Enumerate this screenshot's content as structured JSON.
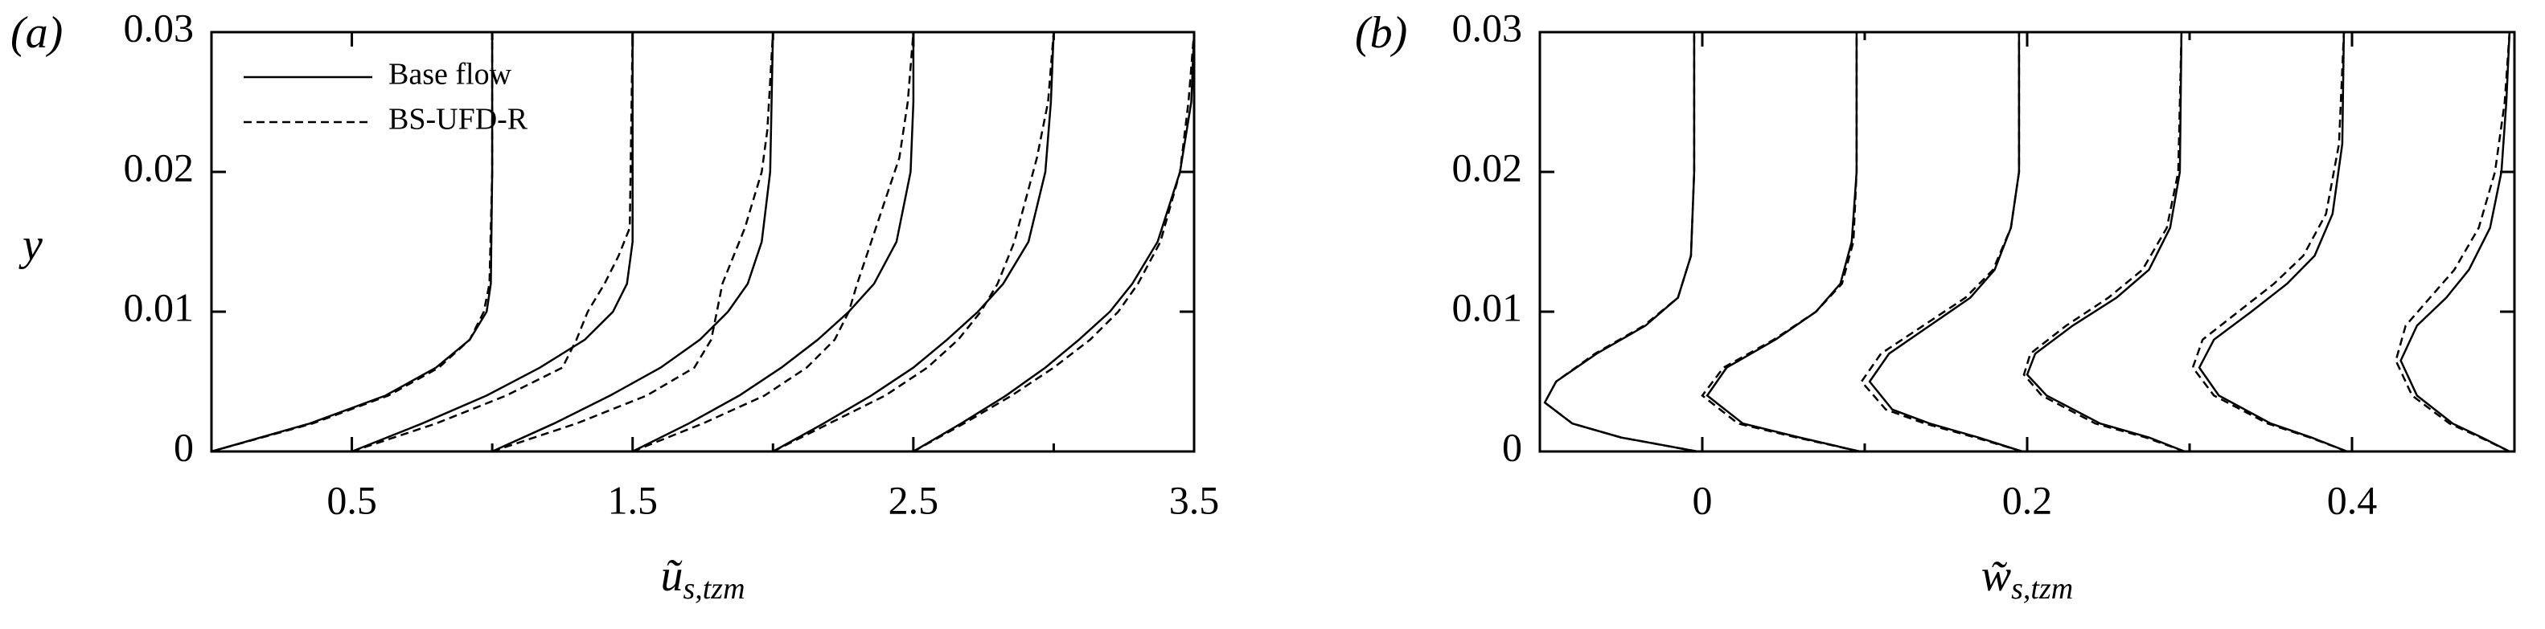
{
  "chart_data": [
    {
      "type": "line",
      "panel_label": "(a)",
      "xlabel": {
        "symbol": "ũ",
        "subscript": "s,tzm"
      },
      "ylabel": "y",
      "xlim": [
        0,
        3.5
      ],
      "ylim": [
        0,
        0.03
      ],
      "xticks": [
        0.5,
        1.5,
        2.5,
        3.5
      ],
      "minor_xticks": [
        1,
        2,
        3
      ],
      "yticks": [
        0,
        0.01,
        0.02,
        0.03
      ],
      "legend": "upper left",
      "series": [
        {
          "name": "Base flow",
          "color": "#000000",
          "style": "solid",
          "lines": [
            {
              "x": [
                0,
                0.35,
                0.62,
                0.8,
                0.92,
                0.98,
                0.995,
                1.0,
                1.0
              ],
              "values": [
                0,
                0.002,
                0.004,
                0.006,
                0.008,
                0.01,
                0.012,
                0.02,
                0.03
              ]
            },
            {
              "x": [
                0.5,
                0.75,
                0.98,
                1.17,
                1.33,
                1.43,
                1.48,
                1.5,
                1.5
              ],
              "values": [
                0,
                0.002,
                0.004,
                0.006,
                0.008,
                0.01,
                0.012,
                0.015,
                0.03
              ]
            },
            {
              "x": [
                1.0,
                1.22,
                1.42,
                1.6,
                1.74,
                1.84,
                1.91,
                1.96,
                1.99,
                2.0
              ],
              "values": [
                0,
                0.002,
                0.004,
                0.006,
                0.008,
                0.01,
                0.012,
                0.015,
                0.02,
                0.03
              ]
            },
            {
              "x": [
                1.5,
                1.7,
                1.88,
                2.03,
                2.16,
                2.27,
                2.36,
                2.44,
                2.49,
                2.5,
                2.5
              ],
              "values": [
                0,
                0.002,
                0.004,
                0.006,
                0.008,
                0.01,
                0.012,
                0.015,
                0.02,
                0.025,
                0.03
              ]
            },
            {
              "x": [
                2.0,
                2.18,
                2.35,
                2.5,
                2.62,
                2.73,
                2.82,
                2.91,
                2.97,
                2.99,
                3.0
              ],
              "values": [
                0,
                0.002,
                0.004,
                0.006,
                0.008,
                0.01,
                0.012,
                0.015,
                0.02,
                0.025,
                0.03
              ]
            },
            {
              "x": [
                2.5,
                2.67,
                2.83,
                2.97,
                3.09,
                3.2,
                3.28,
                3.37,
                3.45,
                3.49,
                3.5
              ],
              "values": [
                0,
                0.002,
                0.004,
                0.006,
                0.008,
                0.01,
                0.012,
                0.015,
                0.02,
                0.025,
                0.03
              ]
            }
          ]
        },
        {
          "name": "BS-UFD-R",
          "color": "#000000",
          "style": "dashed",
          "lines": [
            {
              "x": [
                0,
                0.36,
                0.63,
                0.81,
                0.92,
                0.97,
                0.99,
                1.0,
                1.0
              ],
              "values": [
                0,
                0.002,
                0.004,
                0.006,
                0.008,
                0.01,
                0.012,
                0.02,
                0.03
              ]
            },
            {
              "x": [
                0.5,
                0.8,
                1.05,
                1.25,
                1.3,
                1.34,
                1.4,
                1.45,
                1.49,
                1.5
              ],
              "values": [
                0,
                0.002,
                0.004,
                0.006,
                0.008,
                0.01,
                0.012,
                0.014,
                0.016,
                0.03
              ]
            },
            {
              "x": [
                1.0,
                1.3,
                1.55,
                1.72,
                1.78,
                1.8,
                1.82,
                1.86,
                1.9,
                1.93,
                1.96,
                1.98,
                2.0
              ],
              "values": [
                0,
                0.002,
                0.004,
                0.006,
                0.008,
                0.01,
                0.012,
                0.014,
                0.016,
                0.018,
                0.02,
                0.023,
                0.03
              ]
            },
            {
              "x": [
                1.5,
                1.75,
                1.97,
                2.12,
                2.22,
                2.27,
                2.3,
                2.35,
                2.4,
                2.45,
                2.48,
                2.5
              ],
              "values": [
                0,
                0.002,
                0.004,
                0.006,
                0.008,
                0.01,
                0.012,
                0.015,
                0.018,
                0.021,
                0.025,
                0.03
              ]
            },
            {
              "x": [
                2.0,
                2.2,
                2.4,
                2.55,
                2.66,
                2.74,
                2.8,
                2.86,
                2.9,
                2.94,
                2.98,
                3.0
              ],
              "values": [
                0,
                0.002,
                0.004,
                0.006,
                0.008,
                0.01,
                0.012,
                0.015,
                0.018,
                0.021,
                0.025,
                0.03
              ]
            },
            {
              "x": [
                2.5,
                2.68,
                2.85,
                3.0,
                3.13,
                3.23,
                3.3,
                3.38,
                3.45,
                3.48,
                3.5
              ],
              "values": [
                0,
                0.002,
                0.004,
                0.006,
                0.008,
                0.01,
                0.012,
                0.015,
                0.02,
                0.025,
                0.03
              ]
            }
          ]
        }
      ]
    },
    {
      "type": "line",
      "panel_label": "(b)",
      "xlabel": {
        "symbol": "w̃",
        "subscript": "s,tzm"
      },
      "xlim": [
        -0.1,
        0.5
      ],
      "ylim": [
        0,
        0.03
      ],
      "xticks": [
        0,
        0.2,
        0.4
      ],
      "minor_xticks": [
        0.1,
        0.3
      ],
      "yticks": [
        0,
        0.01,
        0.02,
        0.03
      ],
      "series": [
        {
          "color": "#000000",
          "style": "solid",
          "lines": [
            {
              "x": [
                -0.003,
                -0.05,
                -0.08,
                -0.097,
                -0.09,
                -0.065,
                -0.035,
                -0.015,
                -0.007,
                -0.005,
                -0.005
              ],
              "values": [
                0,
                0.001,
                0.002,
                0.0035,
                0.005,
                0.007,
                0.009,
                0.011,
                0.014,
                0.02,
                0.03
              ]
            },
            {
              "x": [
                0.097,
                0.06,
                0.025,
                0.003,
                0.015,
                0.045,
                0.07,
                0.085,
                0.092,
                0.095,
                0.095
              ],
              "values": [
                0,
                0.001,
                0.002,
                0.004,
                0.006,
                0.008,
                0.01,
                0.012,
                0.015,
                0.02,
                0.03
              ]
            },
            {
              "x": [
                0.197,
                0.17,
                0.14,
                0.117,
                0.103,
                0.115,
                0.14,
                0.165,
                0.18,
                0.19,
                0.195,
                0.195
              ],
              "values": [
                0,
                0.001,
                0.002,
                0.003,
                0.005,
                0.007,
                0.009,
                0.011,
                0.013,
                0.016,
                0.02,
                0.03
              ]
            },
            {
              "x": [
                0.297,
                0.275,
                0.245,
                0.212,
                0.2,
                0.205,
                0.228,
                0.255,
                0.275,
                0.288,
                0.294,
                0.295
              ],
              "values": [
                0,
                0.001,
                0.002,
                0.004,
                0.0055,
                0.007,
                0.009,
                0.011,
                0.013,
                0.016,
                0.02,
                0.03
              ]
            },
            {
              "x": [
                0.397,
                0.375,
                0.35,
                0.318,
                0.306,
                0.315,
                0.338,
                0.36,
                0.377,
                0.388,
                0.394,
                0.395
              ],
              "values": [
                0,
                0.001,
                0.002,
                0.004,
                0.006,
                0.008,
                0.01,
                0.012,
                0.014,
                0.017,
                0.022,
                0.03
              ]
            },
            {
              "x": [
                0.497,
                0.48,
                0.462,
                0.44,
                0.43,
                0.44,
                0.458,
                0.472,
                0.485,
                0.492,
                0.495,
                0.497
              ],
              "values": [
                0,
                0.001,
                0.002,
                0.004,
                0.0065,
                0.009,
                0.011,
                0.013,
                0.016,
                0.02,
                0.025,
                0.03
              ]
            }
          ]
        },
        {
          "color": "#000000",
          "style": "dashed",
          "lines": [
            {
              "x": [
                -0.003,
                -0.05,
                -0.08,
                -0.097,
                -0.09,
                -0.066,
                -0.036,
                -0.015,
                -0.007,
                -0.005,
                -0.005
              ],
              "values": [
                0,
                0.001,
                0.002,
                0.0035,
                0.005,
                0.007,
                0.009,
                0.011,
                0.014,
                0.02,
                0.03
              ]
            },
            {
              "x": [
                0.097,
                0.058,
                0.022,
                0.0,
                0.013,
                0.044,
                0.07,
                0.086,
                0.093,
                0.095,
                0.095
              ],
              "values": [
                0,
                0.001,
                0.002,
                0.004,
                0.006,
                0.008,
                0.01,
                0.012,
                0.015,
                0.02,
                0.03
              ]
            },
            {
              "x": [
                0.197,
                0.168,
                0.137,
                0.113,
                0.098,
                0.11,
                0.136,
                0.162,
                0.179,
                0.19,
                0.195,
                0.195
              ],
              "values": [
                0,
                0.001,
                0.002,
                0.003,
                0.005,
                0.007,
                0.009,
                0.011,
                0.013,
                0.016,
                0.02,
                0.03
              ]
            },
            {
              "x": [
                0.297,
                0.273,
                0.242,
                0.209,
                0.198,
                0.202,
                0.224,
                0.25,
                0.271,
                0.286,
                0.293,
                0.295
              ],
              "values": [
                0,
                0.001,
                0.002,
                0.004,
                0.0055,
                0.007,
                0.009,
                0.011,
                0.013,
                0.016,
                0.02,
                0.03
              ]
            },
            {
              "x": [
                0.397,
                0.374,
                0.348,
                0.315,
                0.302,
                0.308,
                0.33,
                0.352,
                0.37,
                0.384,
                0.392,
                0.395
              ],
              "values": [
                0,
                0.001,
                0.002,
                0.004,
                0.006,
                0.008,
                0.01,
                0.012,
                0.014,
                0.017,
                0.022,
                0.03
              ]
            },
            {
              "x": [
                0.497,
                0.479,
                0.46,
                0.437,
                0.427,
                0.433,
                0.448,
                0.463,
                0.478,
                0.488,
                0.494,
                0.497
              ],
              "values": [
                0,
                0.001,
                0.002,
                0.004,
                0.0065,
                0.009,
                0.011,
                0.013,
                0.016,
                0.02,
                0.025,
                0.03
              ]
            }
          ]
        }
      ]
    }
  ]
}
